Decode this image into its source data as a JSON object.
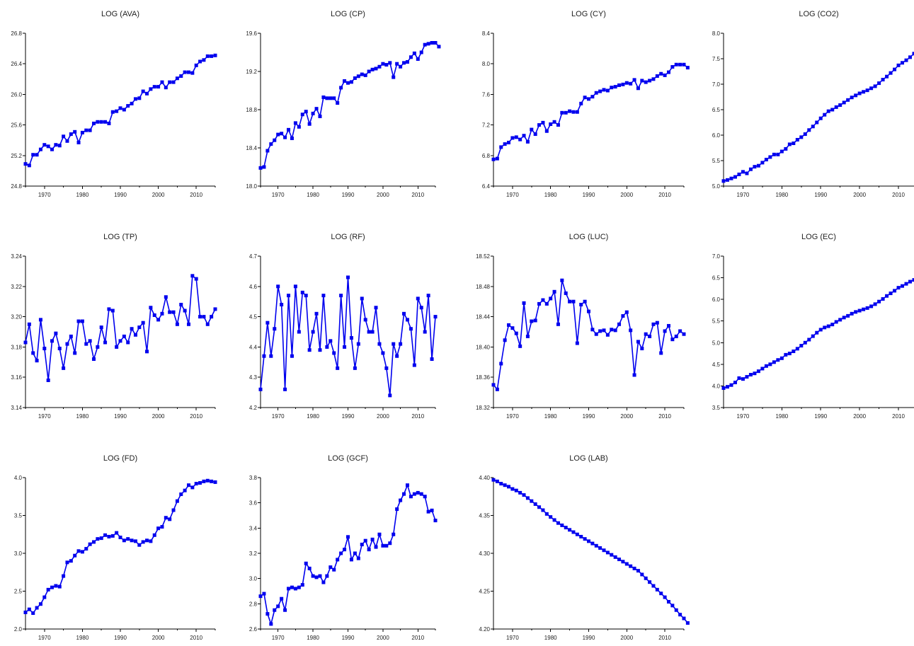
{
  "figure": {
    "line_color": "#0000ee",
    "marker": "square"
  },
  "chart_data": [
    {
      "type": "line",
      "title": "LOG (AVA)",
      "x_start": 1965,
      "xlim": [
        1965,
        2015
      ],
      "x_ticks": [
        1970,
        1980,
        1990,
        2000,
        2010
      ],
      "ylim": [
        24.8,
        26.8
      ],
      "y_ticks": [
        "24.8",
        "25.2",
        "25.6",
        "26.0",
        "26.4",
        "26.8"
      ],
      "grid": false,
      "values": [
        25.09,
        25.07,
        25.21,
        25.21,
        25.28,
        25.34,
        25.32,
        25.28,
        25.34,
        25.33,
        25.45,
        25.39,
        25.48,
        25.51,
        25.37,
        25.5,
        25.53,
        25.53,
        25.62,
        25.64,
        25.64,
        25.64,
        25.62,
        25.77,
        25.78,
        25.82,
        25.8,
        25.85,
        25.88,
        25.94,
        25.95,
        26.04,
        26.01,
        26.07,
        26.1,
        26.1,
        26.16,
        26.09,
        26.16,
        26.16,
        26.21,
        26.24,
        26.29,
        26.29,
        26.28,
        26.38,
        26.43,
        26.45,
        26.5,
        26.5,
        26.51
      ]
    },
    {
      "type": "line",
      "title": "LOG (CP)",
      "x_start": 1965,
      "xlim": [
        1965,
        2015
      ],
      "x_ticks": [
        1970,
        1980,
        1990,
        2000,
        2010
      ],
      "ylim": [
        18.0,
        19.6
      ],
      "y_ticks": [
        "18.0",
        "18.4",
        "18.8",
        "19.2",
        "19.6"
      ],
      "grid": false,
      "values": [
        18.19,
        18.2,
        18.37,
        18.44,
        18.48,
        18.54,
        18.55,
        18.51,
        18.59,
        18.5,
        18.66,
        18.62,
        18.75,
        18.78,
        18.65,
        18.76,
        18.81,
        18.73,
        18.93,
        18.92,
        18.92,
        18.92,
        18.87,
        19.03,
        19.1,
        19.08,
        19.09,
        19.13,
        19.15,
        19.17,
        19.16,
        19.2,
        19.22,
        19.23,
        19.25,
        19.28,
        19.27,
        19.29,
        19.14,
        19.28,
        19.25,
        19.29,
        19.3,
        19.35,
        19.39,
        19.33,
        19.4,
        19.48,
        19.49,
        19.5,
        19.5,
        19.46
      ]
    },
    {
      "type": "line",
      "title": "LOG (CY)",
      "x_start": 1965,
      "xlim": [
        1965,
        2015
      ],
      "x_ticks": [
        1970,
        1980,
        1990,
        2000,
        2010
      ],
      "ylim": [
        6.4,
        8.4
      ],
      "y_ticks": [
        "6.4",
        "6.8",
        "7.2",
        "7.6",
        "8.0",
        "8.4"
      ],
      "grid": false,
      "values": [
        6.75,
        6.76,
        6.91,
        6.95,
        6.97,
        7.03,
        7.04,
        7.01,
        7.06,
        6.98,
        7.14,
        7.08,
        7.2,
        7.23,
        7.12,
        7.21,
        7.24,
        7.2,
        7.36,
        7.36,
        7.38,
        7.37,
        7.37,
        7.48,
        7.56,
        7.54,
        7.57,
        7.62,
        7.64,
        7.66,
        7.65,
        7.69,
        7.7,
        7.72,
        7.73,
        7.75,
        7.74,
        7.79,
        7.68,
        7.78,
        7.76,
        7.78,
        7.8,
        7.84,
        7.87,
        7.85,
        7.89,
        7.96,
        7.99,
        7.99,
        7.99,
        7.95
      ]
    },
    {
      "type": "line",
      "title": "LOG (CO2)",
      "x_start": 1965,
      "xlim": [
        1965,
        2014
      ],
      "x_ticks": [
        1970,
        1980,
        1990,
        2000,
        2010
      ],
      "ylim": [
        5.0,
        8.0
      ],
      "y_ticks": [
        "5.0",
        "5.5",
        "6.0",
        "6.5",
        "7.0",
        "7.5",
        "8.0"
      ],
      "grid": false,
      "values": [
        5.1,
        5.12,
        5.15,
        5.18,
        5.23,
        5.28,
        5.25,
        5.33,
        5.38,
        5.4,
        5.46,
        5.52,
        5.57,
        5.62,
        5.62,
        5.68,
        5.73,
        5.82,
        5.84,
        5.91,
        5.96,
        6.02,
        6.1,
        6.17,
        6.25,
        6.33,
        6.4,
        6.47,
        6.5,
        6.55,
        6.59,
        6.64,
        6.69,
        6.74,
        6.78,
        6.82,
        6.85,
        6.88,
        6.92,
        6.96,
        7.02,
        7.09,
        7.15,
        7.22,
        7.29,
        7.37,
        7.42,
        7.47,
        7.53,
        7.6,
        7.65
      ]
    },
    {
      "type": "line",
      "title": "LOG (TP)",
      "x_start": 1965,
      "xlim": [
        1965,
        2015
      ],
      "x_ticks": [
        1970,
        1980,
        1990,
        2000,
        2010
      ],
      "ylim": [
        3.14,
        3.24
      ],
      "y_ticks": [
        "3.14",
        "3.16",
        "3.18",
        "3.20",
        "3.22",
        "3.24"
      ],
      "grid": false,
      "values": [
        3.183,
        3.195,
        3.176,
        3.171,
        3.198,
        3.179,
        3.158,
        3.184,
        3.189,
        3.179,
        3.166,
        3.182,
        3.187,
        3.176,
        3.197,
        3.197,
        3.182,
        3.184,
        3.172,
        3.18,
        3.193,
        3.183,
        3.205,
        3.204,
        3.18,
        3.184,
        3.187,
        3.183,
        3.192,
        3.188,
        3.193,
        3.196,
        3.177,
        3.206,
        3.201,
        3.198,
        3.202,
        3.213,
        3.203,
        3.203,
        3.195,
        3.208,
        3.204,
        3.195,
        3.227,
        3.225,
        3.2,
        3.2,
        3.195,
        3.2,
        3.205
      ]
    },
    {
      "type": "line",
      "title": "LOG (RF)",
      "x_start": 1965,
      "xlim": [
        1965,
        2015
      ],
      "x_ticks": [
        1970,
        1980,
        1990,
        2000,
        2010
      ],
      "ylim": [
        4.2,
        4.7
      ],
      "y_ticks": [
        "4.2",
        "4.3",
        "4.4",
        "4.5",
        "4.6",
        "4.7"
      ],
      "grid": false,
      "values": [
        4.26,
        4.37,
        4.48,
        4.37,
        4.46,
        4.6,
        4.54,
        4.26,
        4.57,
        4.37,
        4.6,
        4.45,
        4.58,
        4.57,
        4.39,
        4.45,
        4.51,
        4.39,
        4.57,
        4.4,
        4.42,
        4.38,
        4.33,
        4.57,
        4.4,
        4.63,
        4.43,
        4.33,
        4.41,
        4.56,
        4.49,
        4.45,
        4.45,
        4.53,
        4.41,
        4.38,
        4.33,
        4.24,
        4.41,
        4.37,
        4.41,
        4.51,
        4.49,
        4.46,
        4.34,
        4.56,
        4.53,
        4.45,
        4.57,
        4.36,
        4.5
      ]
    },
    {
      "type": "line",
      "title": "LOG (LUC)",
      "x_start": 1965,
      "xlim": [
        1965,
        2015
      ],
      "x_ticks": [
        1970,
        1980,
        1990,
        2000,
        2010
      ],
      "ylim": [
        18.32,
        18.52
      ],
      "y_ticks": [
        "18.32",
        "18.36",
        "18.40",
        "18.44",
        "18.48",
        "18.52"
      ],
      "grid": false,
      "values": [
        18.35,
        18.344,
        18.378,
        18.409,
        18.429,
        18.425,
        18.418,
        18.401,
        18.458,
        18.414,
        18.434,
        18.435,
        18.457,
        18.462,
        18.457,
        18.464,
        18.473,
        18.43,
        18.488,
        18.471,
        18.46,
        18.46,
        18.405,
        18.456,
        18.46,
        18.447,
        18.423,
        18.417,
        18.421,
        18.422,
        18.416,
        18.423,
        18.422,
        18.43,
        18.441,
        18.446,
        18.422,
        18.363,
        18.407,
        18.398,
        18.417,
        18.414,
        18.43,
        18.432,
        18.392,
        18.421,
        18.428,
        18.41,
        18.414,
        18.421,
        18.417
      ]
    },
    {
      "type": "line",
      "title": "LOG (EC)",
      "x_start": 1965,
      "xlim": [
        1965,
        2014
      ],
      "x_ticks": [
        1970,
        1980,
        1990,
        2000,
        2010
      ],
      "ylim": [
        3.5,
        7.0
      ],
      "y_ticks": [
        "3.5",
        "4.0",
        "4.5",
        "5.0",
        "5.5",
        "6.0",
        "6.5",
        "7.0"
      ],
      "grid": false,
      "values": [
        3.95,
        3.98,
        4.02,
        4.08,
        4.18,
        4.16,
        4.21,
        4.26,
        4.29,
        4.34,
        4.4,
        4.46,
        4.5,
        4.55,
        4.6,
        4.64,
        4.72,
        4.75,
        4.8,
        4.86,
        4.93,
        5.0,
        5.07,
        5.15,
        5.23,
        5.3,
        5.35,
        5.38,
        5.42,
        5.48,
        5.53,
        5.58,
        5.62,
        5.67,
        5.71,
        5.74,
        5.77,
        5.8,
        5.84,
        5.89,
        5.95,
        6.01,
        6.08,
        6.14,
        6.2,
        6.27,
        6.31,
        6.36,
        6.41,
        6.45,
        6.5
      ]
    },
    {
      "type": "line",
      "title": "LOG (FD)",
      "x_start": 1965,
      "xlim": [
        1965,
        2015
      ],
      "x_ticks": [
        1970,
        1980,
        1990,
        2000,
        2010
      ],
      "ylim": [
        2.0,
        4.0
      ],
      "y_ticks": [
        "2.0",
        "2.5",
        "3.0",
        "3.5",
        "4.0"
      ],
      "grid": false,
      "values": [
        2.22,
        2.26,
        2.21,
        2.28,
        2.33,
        2.42,
        2.52,
        2.55,
        2.57,
        2.56,
        2.7,
        2.88,
        2.9,
        2.97,
        3.03,
        3.02,
        3.06,
        3.12,
        3.15,
        3.19,
        3.2,
        3.24,
        3.22,
        3.23,
        3.27,
        3.21,
        3.17,
        3.19,
        3.17,
        3.16,
        3.11,
        3.15,
        3.17,
        3.16,
        3.24,
        3.33,
        3.35,
        3.47,
        3.45,
        3.57,
        3.69,
        3.78,
        3.83,
        3.9,
        3.87,
        3.92,
        3.93,
        3.95,
        3.96,
        3.95,
        3.94
      ]
    },
    {
      "type": "line",
      "title": "LOG (GCF)",
      "x_start": 1965,
      "xlim": [
        1965,
        2015
      ],
      "x_ticks": [
        1970,
        1980,
        1990,
        2000,
        2010
      ],
      "ylim": [
        2.6,
        3.8
      ],
      "y_ticks": [
        "2.6",
        "2.8",
        "3.0",
        "3.2",
        "3.4",
        "3.6",
        "3.8"
      ],
      "grid": false,
      "values": [
        2.86,
        2.88,
        2.72,
        2.64,
        2.75,
        2.78,
        2.84,
        2.75,
        2.92,
        2.93,
        2.92,
        2.93,
        2.95,
        3.12,
        3.08,
        3.02,
        3.01,
        3.02,
        2.97,
        3.02,
        3.09,
        3.07,
        3.15,
        3.2,
        3.23,
        3.33,
        3.15,
        3.2,
        3.16,
        3.27,
        3.3,
        3.23,
        3.31,
        3.25,
        3.35,
        3.26,
        3.26,
        3.28,
        3.35,
        3.55,
        3.62,
        3.67,
        3.74,
        3.65,
        3.67,
        3.68,
        3.67,
        3.65,
        3.53,
        3.54,
        3.46
      ]
    },
    {
      "type": "line",
      "title": "LOG (LAB)",
      "x_start": 1965,
      "xlim": [
        1965,
        2015
      ],
      "x_ticks": [
        1970,
        1980,
        1990,
        2000,
        2010
      ],
      "ylim": [
        4.2,
        4.4
      ],
      "y_ticks": [
        "4.20",
        "4.25",
        "4.30",
        "4.35",
        "4.40"
      ],
      "grid": false,
      "values": [
        4.397,
        4.395,
        4.392,
        4.39,
        4.388,
        4.385,
        4.383,
        4.38,
        4.377,
        4.373,
        4.369,
        4.365,
        4.361,
        4.357,
        4.352,
        4.348,
        4.344,
        4.34,
        4.337,
        4.334,
        4.331,
        4.328,
        4.325,
        4.322,
        4.319,
        4.316,
        4.313,
        4.31,
        4.307,
        4.304,
        4.301,
        4.298,
        4.295,
        4.292,
        4.289,
        4.286,
        4.283,
        4.28,
        4.277,
        4.272,
        4.267,
        4.262,
        4.257,
        4.252,
        4.247,
        4.242,
        4.236,
        4.231,
        4.225,
        4.219,
        4.214,
        4.208
      ]
    }
  ]
}
